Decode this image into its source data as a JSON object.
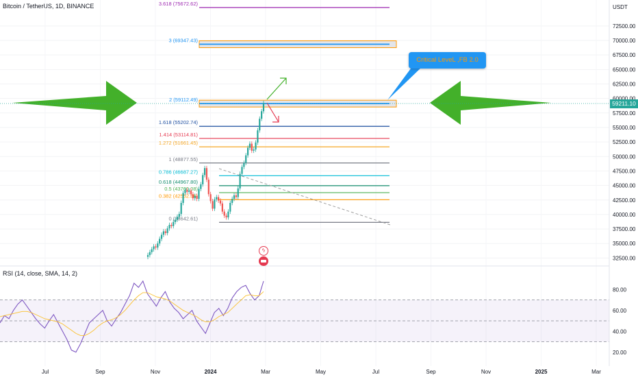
{
  "header": {
    "symbol": "Bitcoin / TetherUS, 1D, BINANCE",
    "currency": "USDT"
  },
  "rsi_header": {
    "label": "RSI (14, close, SMA, 14, 2)"
  },
  "callout": {
    "text": "Critical LeveL ,FB 2.0"
  },
  "current_price_label": "59211.10",
  "colors": {
    "up": "#26a69a",
    "down": "#ef5350",
    "rsi": "#7e57c2",
    "rsi_ma": "#fbc02d",
    "arrow": "#43b02a",
    "callout_bg": "#2196f3",
    "callout_text": "#ff9800"
  },
  "event_icons": [
    "lightning-icon",
    "us-flag-icon"
  ],
  "chart_data": [
    {
      "type": "line",
      "title": "Bitcoin / TetherUS, 1D, BINANCE",
      "y_axis_labels": [
        "72500.00",
        "70000.00",
        "67500.00",
        "65000.00",
        "62500.00",
        "60000.00",
        "57500.00",
        "55000.00",
        "52500.00",
        "50000.00",
        "47500.00",
        "45000.00",
        "42500.00",
        "40000.00",
        "37500.00",
        "35000.00",
        "32500.00"
      ],
      "x_axis_labels": [
        "Jul",
        "Sep",
        "Nov",
        "2024",
        "Mar",
        "May",
        "Jul",
        "Sep",
        "Nov",
        "2025",
        "Mar"
      ],
      "ylim": [
        31600,
        76500
      ],
      "series": [
        {
          "values": [
            33000,
            33500,
            34000,
            34500,
            34300,
            35000,
            35800,
            36500,
            37100,
            36800,
            37600,
            38200,
            38000,
            38700,
            39100,
            39600,
            40100,
            42000,
            43700,
            44200,
            43900,
            44100,
            43500,
            42800,
            43200,
            42700,
            44400,
            45200,
            46800,
            48000,
            46000,
            43500,
            42300,
            41000,
            42600,
            43000,
            42400,
            41900,
            40500,
            39800,
            39500,
            40500,
            42000,
            42700,
            43300,
            43000,
            44500,
            47000,
            48200,
            48900,
            50200,
            51500,
            52200,
            51000,
            51200,
            52400,
            54500,
            56500,
            57800,
            59211
          ]
        }
      ],
      "fib_levels": [
        {
          "label": "3.618 (75672.62)",
          "value": 75672.62,
          "color": "#9c27b0"
        },
        {
          "label": "3 (69347.43)",
          "value": 69347.43,
          "color": "#2196f3"
        },
        {
          "label": "2 (59112.49)",
          "value": 59112.49,
          "color": "#2196f3"
        },
        {
          "label": "1.618 (55202.74)",
          "value": 55202.74,
          "color": "#1e4fa0"
        },
        {
          "label": "1.414 (53114.81)",
          "value": 53114.81,
          "color": "#e53950"
        },
        {
          "label": "1.272 (51661.45)",
          "value": 51661.45,
          "color": "#f5a623"
        },
        {
          "label": "1 (48877.55)",
          "value": 48877.55,
          "color": "#787b86"
        },
        {
          "label": "0.786 (46687.27)",
          "value": 46687.27,
          "color": "#00bcd4"
        },
        {
          "label": "0.618 (44967.80)",
          "value": 44967.8,
          "color": "#138c6e"
        },
        {
          "label": "0.5 (43760.08)",
          "value": 43760.08,
          "color": "#4caf50"
        },
        {
          "label": "0.382 (42552.36)",
          "value": 42552.36,
          "color": "#ff9800"
        },
        {
          "label": "0 (38642.61)",
          "value": 38642.61,
          "color": "#787b86"
        }
      ]
    },
    {
      "type": "line",
      "title": "RSI (14, close, SMA, 14, 2)",
      "y_axis_labels": [
        "80.00",
        "60.00",
        "40.00",
        "20.00"
      ],
      "ylim": [
        12,
        92
      ],
      "bands": [
        30,
        50,
        70
      ],
      "series": [
        {
          "values": [
            48,
            55,
            52,
            60,
            66,
            70,
            64,
            58,
            52,
            47,
            43,
            50,
            56,
            48,
            40,
            32,
            22,
            20,
            28,
            38,
            48,
            52,
            56,
            60,
            50,
            45,
            52,
            58,
            66,
            74,
            86,
            82,
            88,
            76,
            70,
            64,
            72,
            78,
            68,
            62,
            58,
            52,
            56,
            60,
            50,
            44,
            38,
            48,
            58,
            62,
            55,
            62,
            72,
            78,
            82,
            84,
            76,
            70,
            74,
            88
          ]
        },
        {
          "values": [
            54,
            55,
            56,
            57,
            58,
            59,
            59,
            58,
            56,
            54,
            52,
            51,
            50,
            49,
            47,
            44,
            41,
            38,
            36,
            36,
            38,
            41,
            45,
            48,
            50,
            51,
            53,
            56,
            60,
            65,
            70,
            74,
            77,
            77,
            75,
            73,
            72,
            71,
            69,
            66,
            63,
            60,
            58,
            56,
            54,
            51,
            49,
            49,
            51,
            54,
            56,
            58,
            62,
            66,
            70,
            74,
            75,
            74,
            74,
            78
          ]
        }
      ]
    }
  ]
}
